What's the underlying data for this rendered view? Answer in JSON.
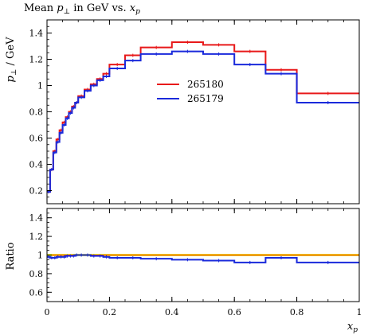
{
  "title": "Mean p⊥ in GeV vs. xp",
  "title_parts": {
    "prefix": "Mean ",
    "var": "p",
    "sub": "⊥",
    "mid": " in GeV vs. ",
    "xvar": "x",
    "xsub": "p"
  },
  "colors": {
    "series_1": "#e8191a",
    "series_2": "#1a2adb",
    "ratio_band": "#f1f11a",
    "frame": "#000000"
  },
  "chart_data": [
    {
      "type": "line",
      "title": "Mean p⊥ in GeV vs. xp",
      "xlabel": "",
      "ylabel": "p⊥ / GeV",
      "ylabel_parts": {
        "var": "p",
        "sub": "⊥",
        "rest": " / GeV"
      },
      "xlim": [
        0,
        1
      ],
      "ylim": [
        0.1,
        1.5
      ],
      "yticks": [
        {
          "value": 0.2,
          "label": "0.2"
        },
        {
          "value": 0.4,
          "label": "0.4"
        },
        {
          "value": 0.6,
          "label": "0.6"
        },
        {
          "value": 0.8,
          "label": "0.8"
        },
        {
          "value": 1.0,
          "label": "1"
        },
        {
          "value": 1.2,
          "label": "1.2"
        },
        {
          "value": 1.4,
          "label": "1.4"
        }
      ],
      "legend_position": "center",
      "bin_edges": [
        0,
        0.01,
        0.02,
        0.03,
        0.04,
        0.05,
        0.06,
        0.07,
        0.08,
        0.09,
        0.1,
        0.12,
        0.14,
        0.16,
        0.18,
        0.2,
        0.25,
        0.3,
        0.4,
        0.5,
        0.6,
        0.7,
        0.8,
        1.0
      ],
      "series": [
        {
          "name": "265180",
          "color_key": "series_1",
          "values": [
            0.19,
            0.36,
            0.5,
            0.59,
            0.66,
            0.72,
            0.76,
            0.8,
            0.84,
            0.87,
            0.92,
            0.97,
            1.01,
            1.05,
            1.09,
            1.16,
            1.23,
            1.29,
            1.33,
            1.31,
            1.26,
            1.12,
            0.94
          ]
        },
        {
          "name": "265179",
          "color_key": "series_2",
          "values": [
            0.19,
            0.36,
            0.49,
            0.57,
            0.64,
            0.7,
            0.75,
            0.79,
            0.83,
            0.87,
            0.91,
            0.96,
            1.0,
            1.04,
            1.07,
            1.13,
            1.19,
            1.24,
            1.26,
            1.24,
            1.16,
            1.09,
            0.87
          ]
        }
      ]
    },
    {
      "type": "line",
      "xlabel": "xp",
      "xlabel_parts": {
        "var": "x",
        "sub": "p"
      },
      "ylabel": "Ratio",
      "xlim": [
        0,
        1
      ],
      "ylim": [
        0.5,
        1.5
      ],
      "xticks": [
        {
          "value": 0,
          "label": "0"
        },
        {
          "value": 0.2,
          "label": "0.2"
        },
        {
          "value": 0.4,
          "label": "0.4"
        },
        {
          "value": 0.6,
          "label": "0.6"
        },
        {
          "value": 0.8,
          "label": "0.8"
        },
        {
          "value": 1.0,
          "label": "1"
        }
      ],
      "yticks": [
        {
          "value": 0.6,
          "label": "0.6"
        },
        {
          "value": 0.8,
          "label": "0.8"
        },
        {
          "value": 1.0,
          "label": "1"
        },
        {
          "value": 1.2,
          "label": "1.2"
        },
        {
          "value": 1.4,
          "label": "1.4"
        }
      ],
      "reference_line": 1.0,
      "bin_edges": [
        0,
        0.01,
        0.02,
        0.03,
        0.04,
        0.05,
        0.06,
        0.07,
        0.08,
        0.09,
        0.1,
        0.12,
        0.14,
        0.16,
        0.18,
        0.2,
        0.25,
        0.3,
        0.4,
        0.5,
        0.6,
        0.7,
        0.8,
        1.0
      ],
      "series": [
        {
          "color_key": "series_2",
          "values": [
            0.98,
            0.97,
            0.97,
            0.98,
            0.98,
            0.98,
            0.99,
            0.99,
            0.99,
            1.0,
            1.0,
            1.0,
            0.99,
            0.99,
            0.98,
            0.97,
            0.97,
            0.96,
            0.95,
            0.94,
            0.92,
            0.97,
            0.92
          ]
        }
      ]
    }
  ]
}
